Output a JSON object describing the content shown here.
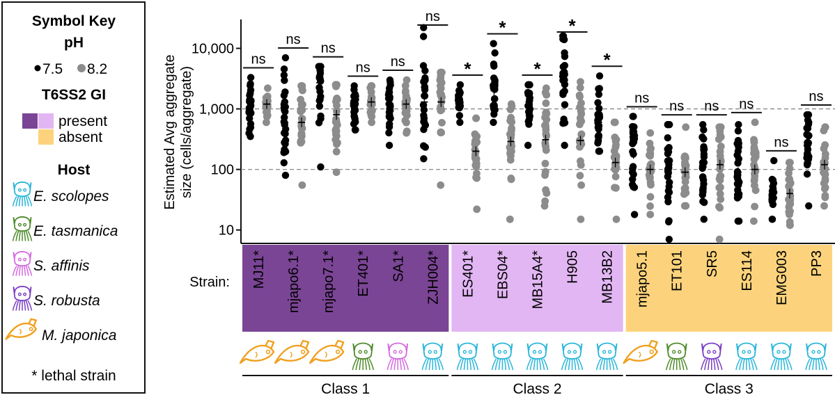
{
  "key": {
    "title": "Symbol Key",
    "ph_heading": "pH",
    "ph_values": [
      "7.5",
      "8.2"
    ],
    "t6ss_heading": "T6SS2 GI",
    "present_label": "present",
    "absent_label": "absent",
    "host_heading": "Host",
    "hosts": [
      {
        "name": "E. scolopes",
        "icon": "squid-icon",
        "color": "#29b6d9"
      },
      {
        "name": "E. tasmanica",
        "icon": "squid-icon",
        "color": "#4e8a2a"
      },
      {
        "name": "S. affinis",
        "icon": "squid-icon",
        "color": "#d46ae0"
      },
      {
        "name": "S. robusta",
        "icon": "squid-icon",
        "color": "#7b3fc4"
      },
      {
        "name": "M. japonica",
        "icon": "fish-icon",
        "color": "#f0a020"
      }
    ],
    "lethal_note": "* lethal strain"
  },
  "colors": {
    "ph75": "#000000",
    "ph82": "#8c8c8c",
    "class1_bg": "#7b4596",
    "class2_bg": "#e2b6f3",
    "class3_bg": "#fcd37c"
  },
  "chart_data": {
    "type": "scatter",
    "ylabel_lines": [
      "Estimated Avg aggregate",
      "size (cells/aggregate)"
    ],
    "yscale": "log",
    "ylim": [
      6,
      30000
    ],
    "yticks": [
      10,
      100,
      1000,
      10000
    ],
    "ytick_labels": [
      "10",
      "100",
      "1,000",
      "10,000"
    ],
    "reference_lines": [
      100,
      1000
    ],
    "strain_label": "Strain:",
    "categories": [
      {
        "strain": "MJ11*",
        "sig": "ns",
        "class": 1,
        "host": 4,
        "ph75": {
          "median": 1100,
          "range": [
            350,
            3300
          ]
        },
        "ph82": {
          "median": 1200,
          "range": [
            600,
            2200
          ]
        }
      },
      {
        "strain": "mjapo6.1*",
        "sig": "ns",
        "class": 1,
        "host": 4,
        "ph75": {
          "median": 600,
          "range": [
            80,
            7000
          ]
        },
        "ph82": {
          "median": 600,
          "range": [
            55,
            2400
          ]
        }
      },
      {
        "strain": "mjapo7.1*",
        "sig": "ns",
        "class": 1,
        "host": 4,
        "ph75": {
          "median": 2700,
          "range": [
            110,
            5000
          ]
        },
        "ph82": {
          "median": 800,
          "range": [
            90,
            2500
          ]
        }
      },
      {
        "strain": "ET401*",
        "sig": "ns",
        "class": 1,
        "host": 1,
        "ph75": {
          "median": 1200,
          "range": [
            450,
            2400
          ]
        },
        "ph82": {
          "median": 1300,
          "range": [
            600,
            2400
          ]
        }
      },
      {
        "strain": "SA1*",
        "sig": "ns",
        "class": 1,
        "host": 2,
        "ph75": {
          "median": 1200,
          "range": [
            250,
            3000
          ]
        },
        "ph82": {
          "median": 1200,
          "range": [
            400,
            3000
          ]
        }
      },
      {
        "strain": "ZJH004*",
        "sig": "ns",
        "class": 1,
        "host": 0,
        "ph75": {
          "median": 1300,
          "range": [
            150,
            22000
          ]
        },
        "ph82": {
          "median": 1300,
          "range": [
            55,
            4000
          ]
        }
      },
      {
        "strain": "ES401*",
        "sig": "*",
        "class": 2,
        "host": 0,
        "ph75": {
          "median": 1500,
          "range": [
            600,
            2500
          ]
        },
        "ph82": {
          "median": 200,
          "range": [
            22,
            700
          ]
        }
      },
      {
        "strain": "EBS04*",
        "sig": "*",
        "class": 2,
        "host": 0,
        "ph75": {
          "median": 2000,
          "range": [
            600,
            12000
          ]
        },
        "ph82": {
          "median": 290,
          "range": [
            15,
            1200
          ]
        }
      },
      {
        "strain": "MB15A4*",
        "sig": "*",
        "class": 2,
        "host": 0,
        "ph75": {
          "median": 1300,
          "range": [
            250,
            2500
          ]
        },
        "ph82": {
          "median": 310,
          "range": [
            25,
            2200
          ]
        }
      },
      {
        "strain": "H905",
        "sig": "*",
        "class": 2,
        "host": 0,
        "ph75": {
          "median": 3500,
          "range": [
            250,
            16000
          ]
        },
        "ph82": {
          "median": 300,
          "range": [
            15,
            2800
          ]
        }
      },
      {
        "strain": "MB13B2",
        "sig": "*",
        "class": 2,
        "host": 0,
        "ph75": {
          "median": 600,
          "range": [
            200,
            3500
          ]
        },
        "ph82": {
          "median": 130,
          "range": [
            15,
            600
          ]
        }
      },
      {
        "strain": "mjapo5.1",
        "sig": "ns",
        "class": 3,
        "host": 4,
        "ph75": {
          "median": 180,
          "range": [
            18,
            750
          ]
        },
        "ph82": {
          "median": 100,
          "range": [
            18,
            400
          ]
        }
      },
      {
        "strain": "ET101",
        "sig": "ns",
        "class": 3,
        "host": 1,
        "ph75": {
          "median": 100,
          "range": [
            7,
            550
          ]
        },
        "ph82": {
          "median": 90,
          "range": [
            25,
            500
          ]
        }
      },
      {
        "strain": "SR5",
        "sig": "ns",
        "class": 3,
        "host": 3,
        "ph75": {
          "median": 110,
          "range": [
            15,
            550
          ]
        },
        "ph82": {
          "median": 120,
          "range": [
            7,
            500
          ]
        }
      },
      {
        "strain": "ES114",
        "sig": "ns",
        "class": 3,
        "host": 0,
        "ph75": {
          "median": 90,
          "range": [
            14,
            550
          ]
        },
        "ph82": {
          "median": 100,
          "range": [
            14,
            600
          ]
        }
      },
      {
        "strain": "EMG003",
        "sig": "ns",
        "class": 3,
        "host": 0,
        "ph75": {
          "median": 40,
          "range": [
            15,
            140
          ]
        },
        "ph82": {
          "median": 40,
          "range": [
            12,
            130
          ]
        }
      },
      {
        "strain": "PP3",
        "sig": "ns",
        "class": 3,
        "host": 0,
        "ph75": {
          "median": 250,
          "range": [
            25,
            800
          ]
        },
        "ph82": {
          "median": 120,
          "range": [
            25,
            500
          ]
        }
      }
    ],
    "class_labels": [
      "Class 1",
      "Class 2",
      "Class 3"
    ]
  }
}
